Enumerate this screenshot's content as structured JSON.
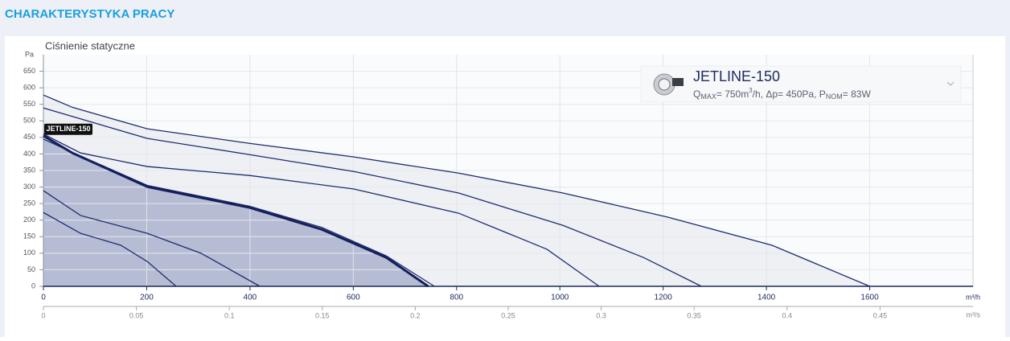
{
  "header": {
    "title": "CHARAKTERYSTYKA PRACY"
  },
  "info_card": {
    "title": "JETLINE-150",
    "spec": [
      "Q",
      "MAX",
      "= 750m",
      "3",
      "/h, Δp= 450Pa, P",
      "NOM",
      "= 83W"
    ]
  },
  "chart_data": {
    "type": "line",
    "title": "Ciśnienie statyczne",
    "ylabel": "Pa",
    "xlabel": "m³/h",
    "x2label": "m³/s",
    "xlim": [
      0,
      1800
    ],
    "xticks": [
      0,
      200,
      400,
      600,
      800,
      1000,
      1200,
      1400,
      1600
    ],
    "x2lim": [
      0,
      0.5
    ],
    "x2ticks": [
      0,
      0.05,
      0.1,
      0.15,
      0.2,
      0.25,
      0.3,
      0.35,
      0.4,
      0.45
    ],
    "ylim": [
      0,
      700
    ],
    "yticks": [
      0,
      50,
      100,
      150,
      200,
      250,
      300,
      350,
      400,
      450,
      500,
      550,
      600,
      650
    ],
    "grid": true,
    "series": [
      {
        "color": "#1f2d6e",
        "fill": "#eef0f4",
        "x": [
          0,
          56,
          201,
          399,
          601,
          804,
          1006,
          1209,
          1411,
          1600
        ],
        "values": [
          578,
          541,
          476,
          432,
          391,
          342,
          282,
          209,
          124,
          0
        ]
      },
      {
        "color": "#1f2d6e",
        "x": [
          0,
          201,
          399,
          601,
          804,
          1006,
          1162,
          1274
        ],
        "values": [
          539,
          447,
          398,
          347,
          282,
          184,
          87,
          0
        ]
      },
      {
        "color": "#1f2d6e",
        "x": [
          0,
          72,
          201,
          399,
          601,
          804,
          975,
          1076
        ],
        "values": [
          460,
          403,
          362,
          335,
          294,
          221,
          112,
          0
        ]
      },
      {
        "color": "#1f2d6e",
        "x": [
          0,
          56,
          201,
          399,
          539,
          664,
          757
        ],
        "values": [
          445,
          405,
          305,
          242,
          178,
          92,
          0
        ]
      },
      {
        "name": "JETLINE-150",
        "color": "#141f5c",
        "fill": "#b6bcd4",
        "width": 3,
        "x": [
          0,
          56,
          201,
          399,
          539,
          664,
          745
        ],
        "values": [
          455,
          403,
          301,
          238,
          172,
          87,
          0
        ]
      },
      {
        "color": "#1f2d6e",
        "x": [
          0,
          72,
          201,
          305,
          419
        ],
        "values": [
          289,
          214,
          160,
          100,
          0
        ]
      },
      {
        "color": "#1f2d6e",
        "x": [
          0,
          72,
          150,
          201,
          257
        ],
        "values": [
          223,
          160,
          124,
          75,
          0
        ]
      }
    ]
  }
}
